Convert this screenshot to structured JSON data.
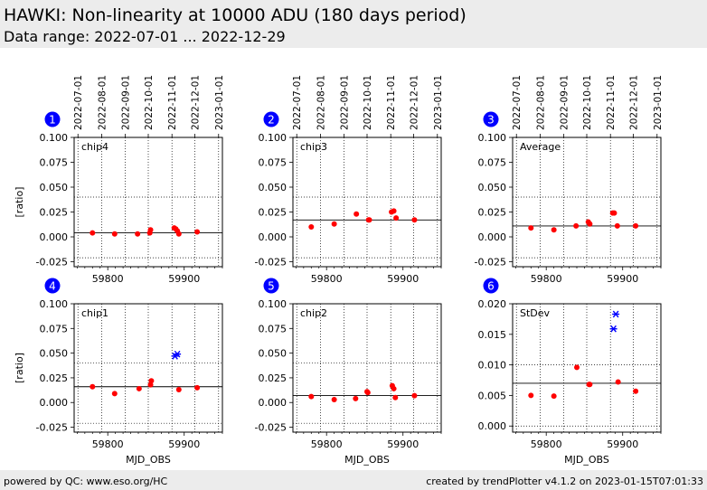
{
  "header": {
    "title": "HAWKI: Non-linearity at 10000 ADU (180 days period)",
    "subtitle": "Data range: 2022-07-01 ... 2022-12-29"
  },
  "footer": {
    "left": "powered by QC: www.eso.org/HC",
    "right": "created by trendPlotter v4.1.2 on 2023-01-15T07:01:33"
  },
  "colors": {
    "point": "#ff0000",
    "outlier": "#0000ff",
    "badge": "#0000ff",
    "reference": "#000000"
  },
  "chart_data": [
    {
      "type": "scatter",
      "badge": "1",
      "label": "chip4",
      "ylabel": "[ratio]",
      "xlabel": "",
      "ylim": [
        -0.03,
        0.1
      ],
      "yticks": [
        "0.100",
        "0.075",
        "0.050",
        "0.025",
        "0.000",
        "-0.025"
      ],
      "ytick_values": [
        0.1,
        0.075,
        0.05,
        0.025,
        0.0,
        -0.025
      ],
      "reference": 0.004,
      "limits": [
        0.04,
        -0.021
      ],
      "points": [
        [
          59780,
          0.004
        ],
        [
          59809,
          0.003
        ],
        [
          59839,
          0.003
        ],
        [
          59855,
          0.004
        ],
        [
          59856,
          0.007
        ],
        [
          59887,
          0.009
        ],
        [
          59889,
          0.008
        ],
        [
          59891,
          0.006
        ],
        [
          59893,
          0.003
        ],
        [
          59917,
          0.005
        ]
      ],
      "outliers": []
    },
    {
      "type": "scatter",
      "badge": "2",
      "label": "chip3",
      "ylabel": "",
      "xlabel": "",
      "ylim": [
        -0.03,
        0.1
      ],
      "yticks": [
        "0.100",
        "0.075",
        "0.050",
        "0.025",
        "0.000",
        "-0.025"
      ],
      "ytick_values": [
        0.1,
        0.075,
        0.05,
        0.025,
        0.0,
        -0.025
      ],
      "reference": 0.017,
      "limits": [
        0.04,
        -0.021
      ],
      "points": [
        [
          59780,
          0.01
        ],
        [
          59810,
          0.013
        ],
        [
          59839,
          0.023
        ],
        [
          59855,
          0.017
        ],
        [
          59856,
          0.017
        ],
        [
          59885,
          0.025
        ],
        [
          59888,
          0.026
        ],
        [
          59891,
          0.019
        ],
        [
          59915,
          0.017
        ]
      ],
      "outliers": []
    },
    {
      "type": "scatter",
      "badge": "3",
      "label": "Average",
      "ylabel": "",
      "xlabel": "",
      "ylim": [
        -0.03,
        0.1
      ],
      "yticks": [
        "0.100",
        "0.075",
        "0.050",
        "0.025",
        "0.000",
        "-0.025"
      ],
      "ytick_values": [
        0.1,
        0.075,
        0.05,
        0.025,
        0.0,
        -0.025
      ],
      "reference": 0.011,
      "limits": [
        0.04,
        -0.021
      ],
      "points": [
        [
          59780,
          0.009
        ],
        [
          59810,
          0.007
        ],
        [
          59839,
          0.011
        ],
        [
          59855,
          0.015
        ],
        [
          59857,
          0.013
        ],
        [
          59887,
          0.024
        ],
        [
          59889,
          0.024
        ],
        [
          59893,
          0.011
        ],
        [
          59917,
          0.011
        ]
      ],
      "outliers": []
    },
    {
      "type": "scatter",
      "badge": "4",
      "label": "chip1",
      "ylabel": "[ratio]",
      "xlabel": "MJD_OBS",
      "ylim": [
        -0.03,
        0.1
      ],
      "yticks": [
        "0.100",
        "0.075",
        "0.050",
        "0.025",
        "0.000",
        "-0.025"
      ],
      "ytick_values": [
        0.1,
        0.075,
        0.05,
        0.025,
        0.0,
        -0.025
      ],
      "reference": 0.016,
      "limits": [
        0.04,
        -0.021
      ],
      "points": [
        [
          59780,
          0.016
        ],
        [
          59809,
          0.009
        ],
        [
          59841,
          0.014
        ],
        [
          59856,
          0.018
        ],
        [
          59857,
          0.022
        ],
        [
          59893,
          0.013
        ],
        [
          59917,
          0.015
        ]
      ],
      "outliers": [
        [
          59888,
          0.047
        ],
        [
          59891,
          0.049
        ]
      ]
    },
    {
      "type": "scatter",
      "badge": "5",
      "label": "chip2",
      "ylabel": "",
      "xlabel": "MJD_OBS",
      "ylim": [
        -0.03,
        0.1
      ],
      "yticks": [
        "0.100",
        "0.075",
        "0.050",
        "0.025",
        "0.000",
        "-0.025"
      ],
      "ytick_values": [
        0.1,
        0.075,
        0.05,
        0.025,
        0.0,
        -0.025
      ],
      "reference": 0.007,
      "limits": [
        0.04,
        -0.021
      ],
      "points": [
        [
          59780,
          0.006
        ],
        [
          59810,
          0.003
        ],
        [
          59838,
          0.004
        ],
        [
          59853,
          0.011
        ],
        [
          59854,
          0.01
        ],
        [
          59886,
          0.017
        ],
        [
          59888,
          0.014
        ],
        [
          59890,
          0.005
        ],
        [
          59915,
          0.007
        ]
      ],
      "outliers": []
    },
    {
      "type": "scatter",
      "badge": "6",
      "label": "StDev",
      "ylabel": "",
      "xlabel": "MJD_OBS",
      "ylim": [
        -0.001,
        0.02
      ],
      "yticks": [
        "0.020",
        "0.015",
        "0.010",
        "0.005",
        "0.000"
      ],
      "ytick_values": [
        0.02,
        0.015,
        0.01,
        0.005,
        0.0
      ],
      "reference": 0.007,
      "limits": [
        0.01,
        0.0
      ],
      "points": [
        [
          59780,
          0.005
        ],
        [
          59810,
          0.0049
        ],
        [
          59840,
          0.0096
        ],
        [
          59856,
          0.0068
        ],
        [
          59857,
          0.0068
        ],
        [
          59894,
          0.0072
        ],
        [
          59917,
          0.0057
        ]
      ],
      "outliers": [
        [
          59888,
          0.0159
        ],
        [
          59891,
          0.0183
        ]
      ]
    }
  ],
  "x_axis": {
    "xlim": [
      59756,
      59950
    ],
    "ticks": [
      59800,
      59900
    ],
    "tick_labels": [
      "59800",
      "59900"
    ],
    "minor_step": 10,
    "date_ticks": [
      {
        "mjd": 59761,
        "label": "2022-07-01"
      },
      {
        "mjd": 59792,
        "label": "2022-08-01"
      },
      {
        "mjd": 59823,
        "label": "2022-09-01"
      },
      {
        "mjd": 59853,
        "label": "2022-10-01"
      },
      {
        "mjd": 59884,
        "label": "2022-11-01"
      },
      {
        "mjd": 59914,
        "label": "2022-12-01"
      },
      {
        "mjd": 59945,
        "label": "2023-01-01"
      }
    ]
  }
}
